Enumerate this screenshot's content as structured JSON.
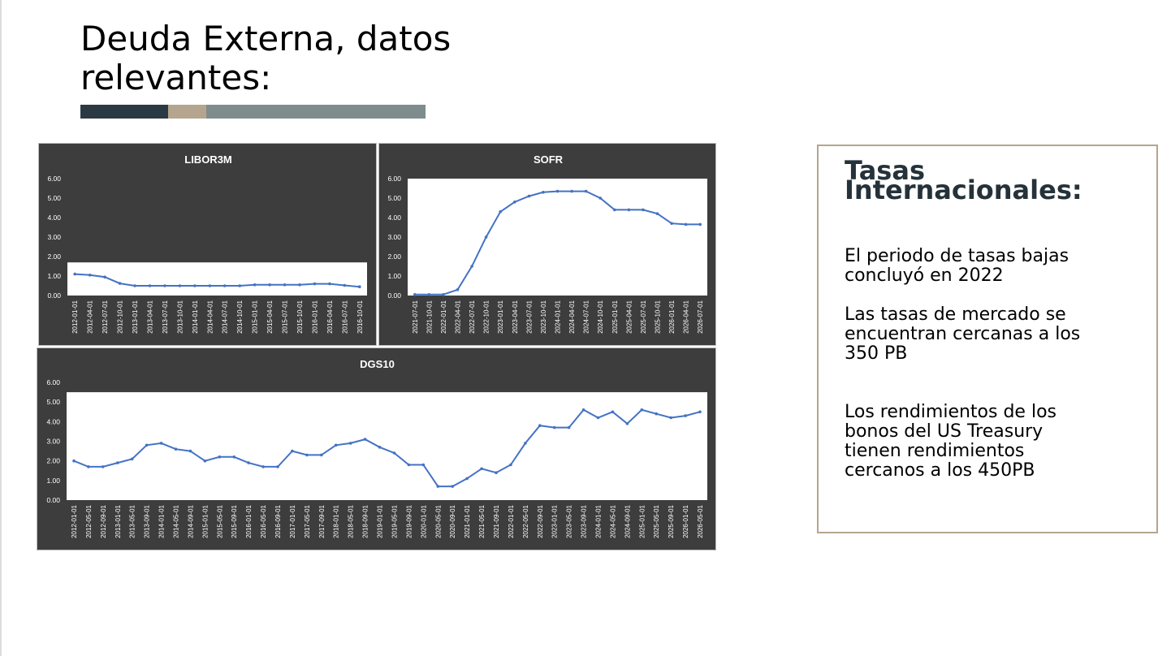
{
  "slide": {
    "title_lines": [
      "Deuda Externa, datos",
      "relevantes:"
    ],
    "accent_colors": [
      "#2b3a42",
      "#b5a58e",
      "#7f8c8d"
    ]
  },
  "sidebar": {
    "title_lines": [
      "Tasas",
      "Internacionales:"
    ],
    "paragraphs": [
      {
        "lines": [
          "El periodo de tasas bajas",
          "concluyó en 2022"
        ]
      },
      {
        "lines": [
          "Las tasas de mercado se",
          "encuentran cercanas a los",
          "350 PB"
        ]
      },
      {
        "lines": [
          "Los rendimientos de los",
          "bonos del US Treasury",
          "tienen rendimientos",
          "cercanos a los 450PB"
        ]
      }
    ]
  },
  "chart_data": [
    {
      "type": "line",
      "title": "LIBOR3M",
      "series_color": "#4472c4",
      "y_ticks": [
        "6.00",
        "5.00",
        "4.00",
        "3.00",
        "2.00",
        "1.00",
        "0.00"
      ],
      "ylim": [
        0,
        6
      ],
      "plot_area_ymax": 1.7,
      "x_ticks": [
        "2012-01-01",
        "2012-04-01",
        "2012-07-01",
        "2012-10-01",
        "2013-01-01",
        "2013-04-01",
        "2013-07-01",
        "2013-10-01",
        "2014-01-01",
        "2014-04-01",
        "2014-07-01",
        "2014-10-01",
        "2015-01-01",
        "2015-04-01",
        "2015-07-01",
        "2015-10-01",
        "2016-01-01",
        "2016-04-01",
        "2016-07-01",
        "2016-10-01"
      ],
      "values": [
        1.1,
        1.05,
        0.95,
        0.62,
        0.5,
        0.5,
        0.5,
        0.5,
        0.5,
        0.5,
        0.5,
        0.5,
        0.55,
        0.55,
        0.55,
        0.55,
        0.6,
        0.6,
        0.52,
        0.45
      ]
    },
    {
      "type": "line",
      "title": "SOFR",
      "series_color": "#4472c4",
      "y_ticks": [
        "6.00",
        "5.00",
        "4.00",
        "3.00",
        "2.00",
        "1.00",
        "0.00"
      ],
      "ylim": [
        0,
        6
      ],
      "plot_area_ymax": 6,
      "x_ticks": [
        "2021-07-01",
        "2021-10-01",
        "2022-01-01",
        "2022-04-01",
        "2022-07-01",
        "2022-10-01",
        "2023-01-01",
        "2023-04-01",
        "2023-07-01",
        "2023-10-01",
        "2024-01-01",
        "2024-04-01",
        "2024-07-01",
        "2024-10-01",
        "2025-01-01",
        "2025-04-01",
        "2025-07-01",
        "2025-10-01",
        "2026-01-01",
        "2026-04-01",
        "2026-07-01"
      ],
      "values": [
        0.05,
        0.05,
        0.05,
        0.3,
        1.5,
        3.0,
        4.3,
        4.8,
        5.1,
        5.3,
        5.35,
        5.35,
        5.35,
        5.0,
        4.4,
        4.4,
        4.4,
        4.2,
        3.7,
        3.65,
        3.65
      ]
    },
    {
      "type": "line",
      "title": "DGS10",
      "series_color": "#4472c4",
      "y_ticks": [
        "6.00",
        "5.00",
        "4.00",
        "3.00",
        "2.00",
        "1.00",
        "0.00"
      ],
      "ylim": [
        0,
        6
      ],
      "plot_area_ymax": 5.5,
      "x_ticks": [
        "2012-01-01",
        "2012-05-01",
        "2012-09-01",
        "2013-01-01",
        "2013-05-01",
        "2013-09-01",
        "2014-01-01",
        "2014-05-01",
        "2014-09-01",
        "2015-01-01",
        "2015-05-01",
        "2015-09-01",
        "2016-01-01",
        "2016-05-01",
        "2016-09-01",
        "2017-01-01",
        "2017-05-01",
        "2017-09-01",
        "2018-01-01",
        "2018-05-01",
        "2018-09-01",
        "2019-01-01",
        "2019-05-01",
        "2019-09-01",
        "2020-01-01",
        "2020-05-01",
        "2020-09-01",
        "2021-01-01",
        "2021-05-01",
        "2021-09-01",
        "2022-01-01",
        "2022-05-01",
        "2022-09-01",
        "2023-01-01",
        "2023-05-01",
        "2023-09-01",
        "2024-01-01",
        "2024-05-01",
        "2024-09-01",
        "2025-01-01",
        "2025-05-01",
        "2025-09-01",
        "2026-01-01",
        "2026-05-01"
      ],
      "values": [
        2.0,
        1.7,
        1.7,
        1.9,
        2.1,
        2.8,
        2.9,
        2.6,
        2.5,
        2.0,
        2.2,
        2.2,
        1.9,
        1.7,
        1.7,
        2.5,
        2.3,
        2.3,
        2.8,
        2.9,
        3.1,
        2.7,
        2.4,
        1.8,
        1.8,
        0.7,
        0.7,
        1.1,
        1.6,
        1.4,
        1.8,
        2.9,
        3.8,
        3.7,
        3.7,
        4.6,
        4.2,
        4.5,
        3.9,
        4.6,
        4.4,
        4.2,
        4.3,
        4.5
      ]
    }
  ]
}
